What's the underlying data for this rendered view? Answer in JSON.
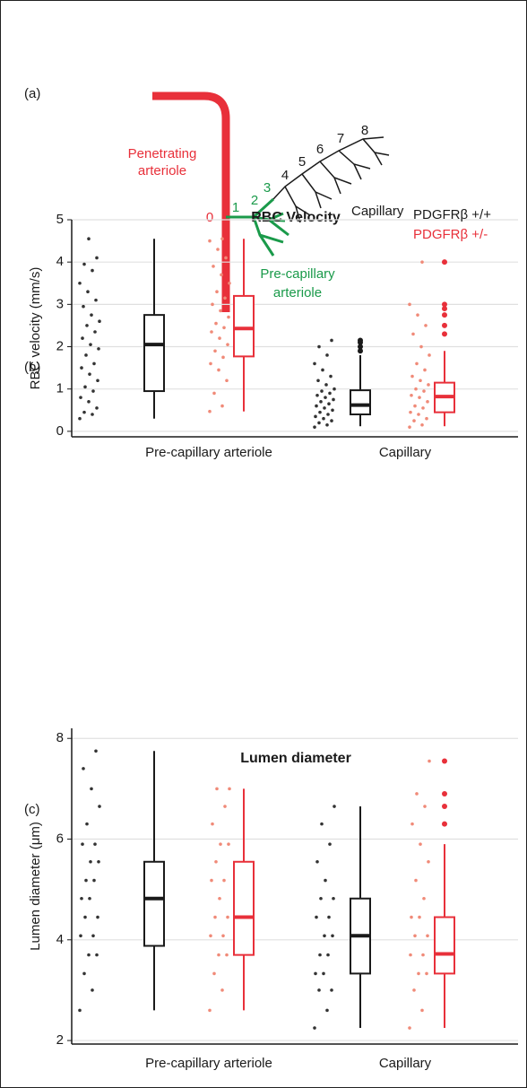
{
  "diagram": {
    "panel_label": "(a)",
    "penetrating_label": [
      "Penetrating",
      "arteriole"
    ],
    "pre_capillary_label": [
      "Pre-capillary",
      "arteriole"
    ],
    "capillary_label": "Capillary",
    "order_labels": [
      "0",
      "1",
      "2",
      "3",
      "4",
      "5",
      "6",
      "7",
      "8"
    ]
  },
  "chart_data": [
    {
      "type": "box",
      "panel_label": "(b)",
      "title": "RBC Velocity",
      "y_label": "RBC velocity (mm/s)",
      "categories": [
        "Pre-capillary arteriole",
        "Capillary"
      ],
      "ylim": [
        -0.13,
        5
      ],
      "yticks": [
        0,
        1,
        2,
        3,
        4,
        5
      ],
      "grid": true,
      "legend": "top-right",
      "series": [
        {
          "name": "PDGFRβ +/+",
          "color": "#1a1a1a",
          "point_color": "#333333",
          "groups": [
            {
              "points": [
                0.3,
                0.4,
                0.45,
                0.55,
                0.7,
                0.8,
                0.95,
                1.05,
                1.2,
                1.35,
                1.5,
                1.6,
                1.8,
                1.95,
                2.05,
                2.2,
                2.35,
                2.5,
                2.6,
                2.75,
                2.95,
                3.1,
                3.3,
                3.5,
                3.8,
                3.95,
                4.1,
                4.55
              ],
              "whislo": 0.3,
              "q1": 0.95,
              "med": 2.05,
              "q3": 2.75,
              "whishi": 4.55,
              "outliers": []
            },
            {
              "points": [
                0.1,
                0.15,
                0.2,
                0.25,
                0.3,
                0.35,
                0.4,
                0.45,
                0.5,
                0.55,
                0.6,
                0.65,
                0.7,
                0.75,
                0.8,
                0.85,
                0.9,
                0.95,
                1.0,
                1.1,
                1.2,
                1.3,
                1.45,
                1.6,
                1.8,
                2.0,
                2.15
              ],
              "whislo": 0.12,
              "q1": 0.4,
              "med": 0.62,
              "q3": 0.97,
              "whishi": 1.8,
              "outliers": [
                1.9,
                2.0,
                2.1,
                2.15
              ]
            }
          ]
        },
        {
          "name": "PDGFRβ +/-",
          "color": "#e8303a",
          "point_color": "#f08a78",
          "groups": [
            {
              "points": [
                0.47,
                0.6,
                0.9,
                1.2,
                1.45,
                1.6,
                1.75,
                1.9,
                2.05,
                2.2,
                2.35,
                2.45,
                2.55,
                2.7,
                2.85,
                3.0,
                3.15,
                3.3,
                3.5,
                3.7,
                3.9,
                4.1,
                4.3,
                4.5,
                4.55
              ],
              "whislo": 0.47,
              "q1": 1.77,
              "med": 2.43,
              "q3": 3.2,
              "whishi": 4.55,
              "outliers": []
            },
            {
              "points": [
                0.1,
                0.15,
                0.25,
                0.3,
                0.4,
                0.45,
                0.55,
                0.6,
                0.7,
                0.8,
                0.85,
                0.95,
                1.0,
                1.1,
                1.2,
                1.3,
                1.45,
                1.6,
                1.8,
                2.0,
                2.3,
                2.5,
                2.75,
                3.0,
                4.0
              ],
              "whislo": 0.12,
              "q1": 0.45,
              "med": 0.82,
              "q3": 1.15,
              "whishi": 1.9,
              "outliers": [
                2.3,
                2.5,
                2.75,
                2.9,
                3.0,
                4.0
              ]
            }
          ]
        }
      ]
    },
    {
      "type": "box",
      "panel_label": "(c)",
      "title": "Lumen diameter",
      "y_label": "Lumen diameter (μm)",
      "categories": [
        "Pre-capillary arteriole",
        "Capillary"
      ],
      "ylim": [
        1.93,
        8.2
      ],
      "yticks": [
        2,
        4,
        6,
        8
      ],
      "grid": true,
      "series": [
        {
          "name": "PDGFRβ +/+",
          "color": "#1a1a1a",
          "point_color": "#333333",
          "groups": [
            {
              "points": [
                2.6,
                3.0,
                3.33,
                3.7,
                3.7,
                4.08,
                4.08,
                4.45,
                4.45,
                4.82,
                4.82,
                5.18,
                5.18,
                5.55,
                5.55,
                5.9,
                5.9,
                6.3,
                6.65,
                7.0,
                7.4,
                7.75
              ],
              "whislo": 2.6,
              "q1": 3.88,
              "med": 4.82,
              "q3": 5.55,
              "whishi": 7.75,
              "outliers": []
            },
            {
              "points": [
                2.25,
                2.6,
                3.0,
                3.0,
                3.33,
                3.33,
                3.7,
                3.7,
                4.08,
                4.08,
                4.45,
                4.45,
                4.82,
                4.82,
                5.18,
                5.55,
                5.9,
                6.3,
                6.65
              ],
              "whislo": 2.25,
              "q1": 3.33,
              "med": 4.08,
              "q3": 4.82,
              "whishi": 6.65,
              "outliers": []
            }
          ]
        },
        {
          "name": "PDGFRβ +/-",
          "color": "#e8303a",
          "point_color": "#f08a78",
          "groups": [
            {
              "points": [
                2.6,
                3.0,
                3.33,
                3.7,
                3.7,
                4.08,
                4.08,
                4.45,
                4.45,
                4.82,
                5.18,
                5.18,
                5.55,
                5.9,
                5.9,
                6.3,
                6.65,
                7.0,
                7.0
              ],
              "whislo": 2.6,
              "q1": 3.7,
              "med": 4.45,
              "q3": 5.55,
              "whishi": 7.0,
              "outliers": []
            },
            {
              "points": [
                2.25,
                2.6,
                3.0,
                3.33,
                3.33,
                3.7,
                3.7,
                4.08,
                4.08,
                4.45,
                4.45,
                4.82,
                5.18,
                5.55,
                5.9,
                6.3,
                6.65,
                6.9,
                7.55
              ],
              "whislo": 2.25,
              "q1": 3.33,
              "med": 3.72,
              "q3": 4.45,
              "whishi": 5.9,
              "outliers": [
                6.3,
                6.65,
                6.9,
                7.55
              ]
            }
          ]
        }
      ]
    }
  ]
}
